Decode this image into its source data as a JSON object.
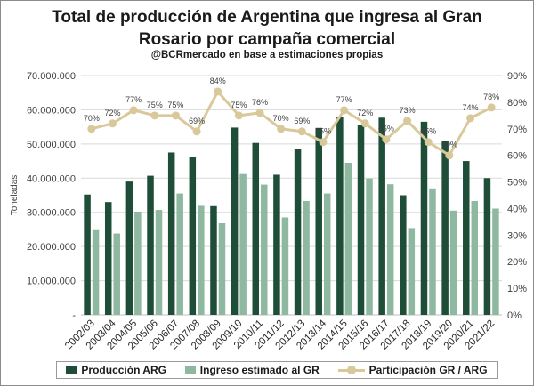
{
  "chart_data": {
    "type": "bar",
    "title": "Total de producción de Argentina que ingresa al Gran\nRosario por campaña comercial",
    "subtitle": "@BCRmercado  en base a estimaciones propias",
    "ylabel": "Toneladas",
    "categories": [
      "2002/03",
      "2003/04",
      "2004/05",
      "2005/06",
      "2006/07",
      "2007/08",
      "2008/09",
      "2009/10",
      "2010/11",
      "2011/12",
      "2012/13",
      "2013/14",
      "2014/15",
      "2015/16",
      "2016/17",
      "2017/18",
      "2018/19",
      "2019/20",
      "2020/21",
      "2021/22"
    ],
    "series": [
      {
        "name": "Producción ARG",
        "axis": "left",
        "color": "#1e4d38",
        "values": [
          35200000,
          33000000,
          39000000,
          40700000,
          47500000,
          46200000,
          31800000,
          54800000,
          50300000,
          41000000,
          48400000,
          54700000,
          58000000,
          55500000,
          57700000,
          35000000,
          56500000,
          51000000,
          45000000,
          40000000
        ]
      },
      {
        "name": "Ingreso estimado al GR",
        "axis": "left",
        "color": "#8fb8a0",
        "values": [
          24800000,
          23800000,
          30200000,
          30700000,
          35500000,
          31900000,
          26800000,
          41200000,
          38100000,
          28500000,
          33300000,
          35500000,
          44500000,
          39900000,
          38200000,
          25400000,
          37000000,
          30500000,
          33300000,
          31100000
        ]
      },
      {
        "name": "Participación GR / ARG",
        "axis": "right",
        "type": "line",
        "color": "#d9c89a",
        "values": [
          70,
          72,
          77,
          75,
          75,
          69,
          84,
          75,
          76,
          70,
          69,
          65,
          77,
          72,
          66,
          73,
          65,
          60,
          74,
          78
        ],
        "labels": [
          "70%",
          "72%",
          "77%",
          "75%",
          "75%",
          "69%",
          "84%",
          "75%",
          "76%",
          "70%",
          "69%",
          "65%",
          "77%",
          "72%",
          "66%",
          "73%",
          "65%",
          "60%",
          "74%",
          "78%"
        ]
      }
    ],
    "ylim": [
      0,
      70000000
    ],
    "y_ticks": [
      "-",
      "10.000.000",
      "20.000.000",
      "30.000.000",
      "40.000.000",
      "50.000.000",
      "60.000.000",
      "70.000.000"
    ],
    "y2lim": [
      0,
      90
    ],
    "y2_ticks": [
      "0%",
      "10%",
      "20%",
      "30%",
      "40%",
      "50%",
      "60%",
      "70%",
      "80%",
      "90%"
    ],
    "grid": true,
    "legend_position": "bottom"
  }
}
